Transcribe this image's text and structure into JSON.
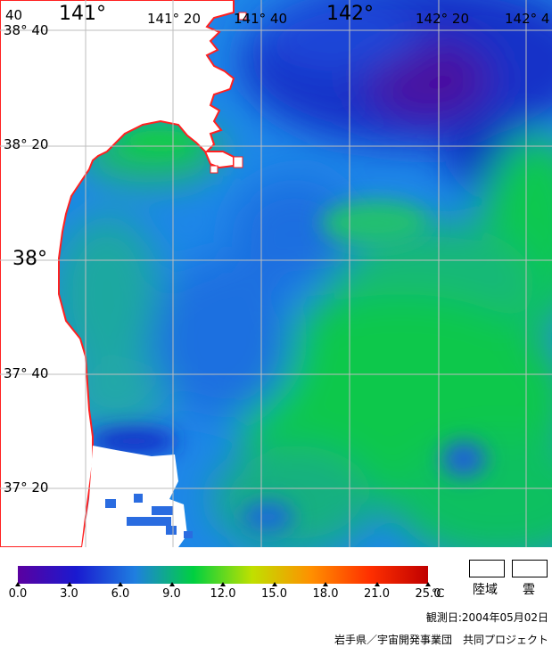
{
  "map": {
    "lon_labels": [
      "141°",
      "141° 20",
      "141° 40",
      "142°",
      "142° 20",
      "142° 4"
    ],
    "lon_label_corner": "40",
    "lat_labels": [
      "38° 40",
      "38° 20",
      "38°",
      "37° 40",
      "37° 20"
    ],
    "land_label": "陸域",
    "cloud_label": "雲",
    "colors": {
      "land_outline": "#ff2020",
      "grid": "#bdbdbd",
      "land": "#ffffff",
      "cloud": "#ffffff"
    }
  },
  "legend": {
    "ticks": [
      "0.0",
      "3.0",
      "6.0",
      "9.0",
      "12.0",
      "15.0",
      "18.0",
      "21.0",
      "25.0"
    ],
    "unit": "℃",
    "gradient_colors": [
      "#5a00a0",
      "#1a1ad0",
      "#1f7fe0",
      "#00d040",
      "#c0e000",
      "#ff9000",
      "#ff3000",
      "#c00000"
    ]
  },
  "footer": {
    "observation_date": "観測日:2004年05月02日",
    "credit": "岩手県／宇宙開発事業団　共同プロジェクト"
  }
}
